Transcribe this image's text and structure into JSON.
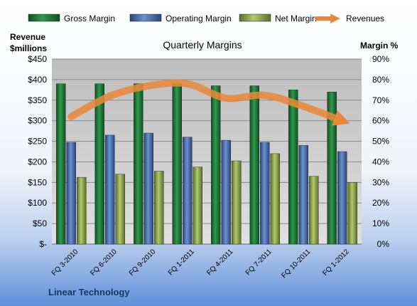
{
  "chart_data": {
    "type": "bar",
    "title": "Quarterly Margins",
    "company": "Linear Technology",
    "categories": [
      "FQ 3-2010",
      "FQ 6-2010",
      "FQ 9-2010",
      "FQ 1-2011",
      "FQ 4-2011",
      "FQ 7-2011",
      "FQ 10-2011",
      "FQ 1-2012"
    ],
    "ylabel_left": [
      "Revenue",
      "$millions"
    ],
    "ylabel_right": "Margin %",
    "left_axis": {
      "min": 0,
      "max": 450,
      "step": 50,
      "format": "currency"
    },
    "right_axis": {
      "min": 0,
      "max": 90,
      "step": 10,
      "format": "percent"
    },
    "legend": {
      "placement": "top",
      "entries": [
        "Gross Margin",
        "Operating Margin",
        "Net Margin",
        "Revenues"
      ]
    },
    "grid": true,
    "series": [
      {
        "name": "Gross Margin",
        "kind": "bar",
        "axis": "right",
        "color": "#1e7d3a",
        "values": [
          78,
          78,
          78,
          78,
          77,
          77,
          75,
          74
        ]
      },
      {
        "name": "Operating Margin",
        "kind": "bar",
        "axis": "right",
        "color": "#4670b4",
        "values": [
          49.5,
          53,
          54,
          52,
          50.5,
          49.5,
          48,
          45
        ]
      },
      {
        "name": "Net Margin",
        "kind": "bar",
        "axis": "right",
        "color": "#8faa4a",
        "values": [
          32.5,
          34,
          35.5,
          37.5,
          40.5,
          44,
          33,
          30
        ]
      },
      {
        "name": "Revenues",
        "kind": "line",
        "axis": "left",
        "color": "#e8883a",
        "values": [
          310,
          360,
          385,
          390,
          355,
          362,
          335,
          300
        ]
      }
    ]
  }
}
